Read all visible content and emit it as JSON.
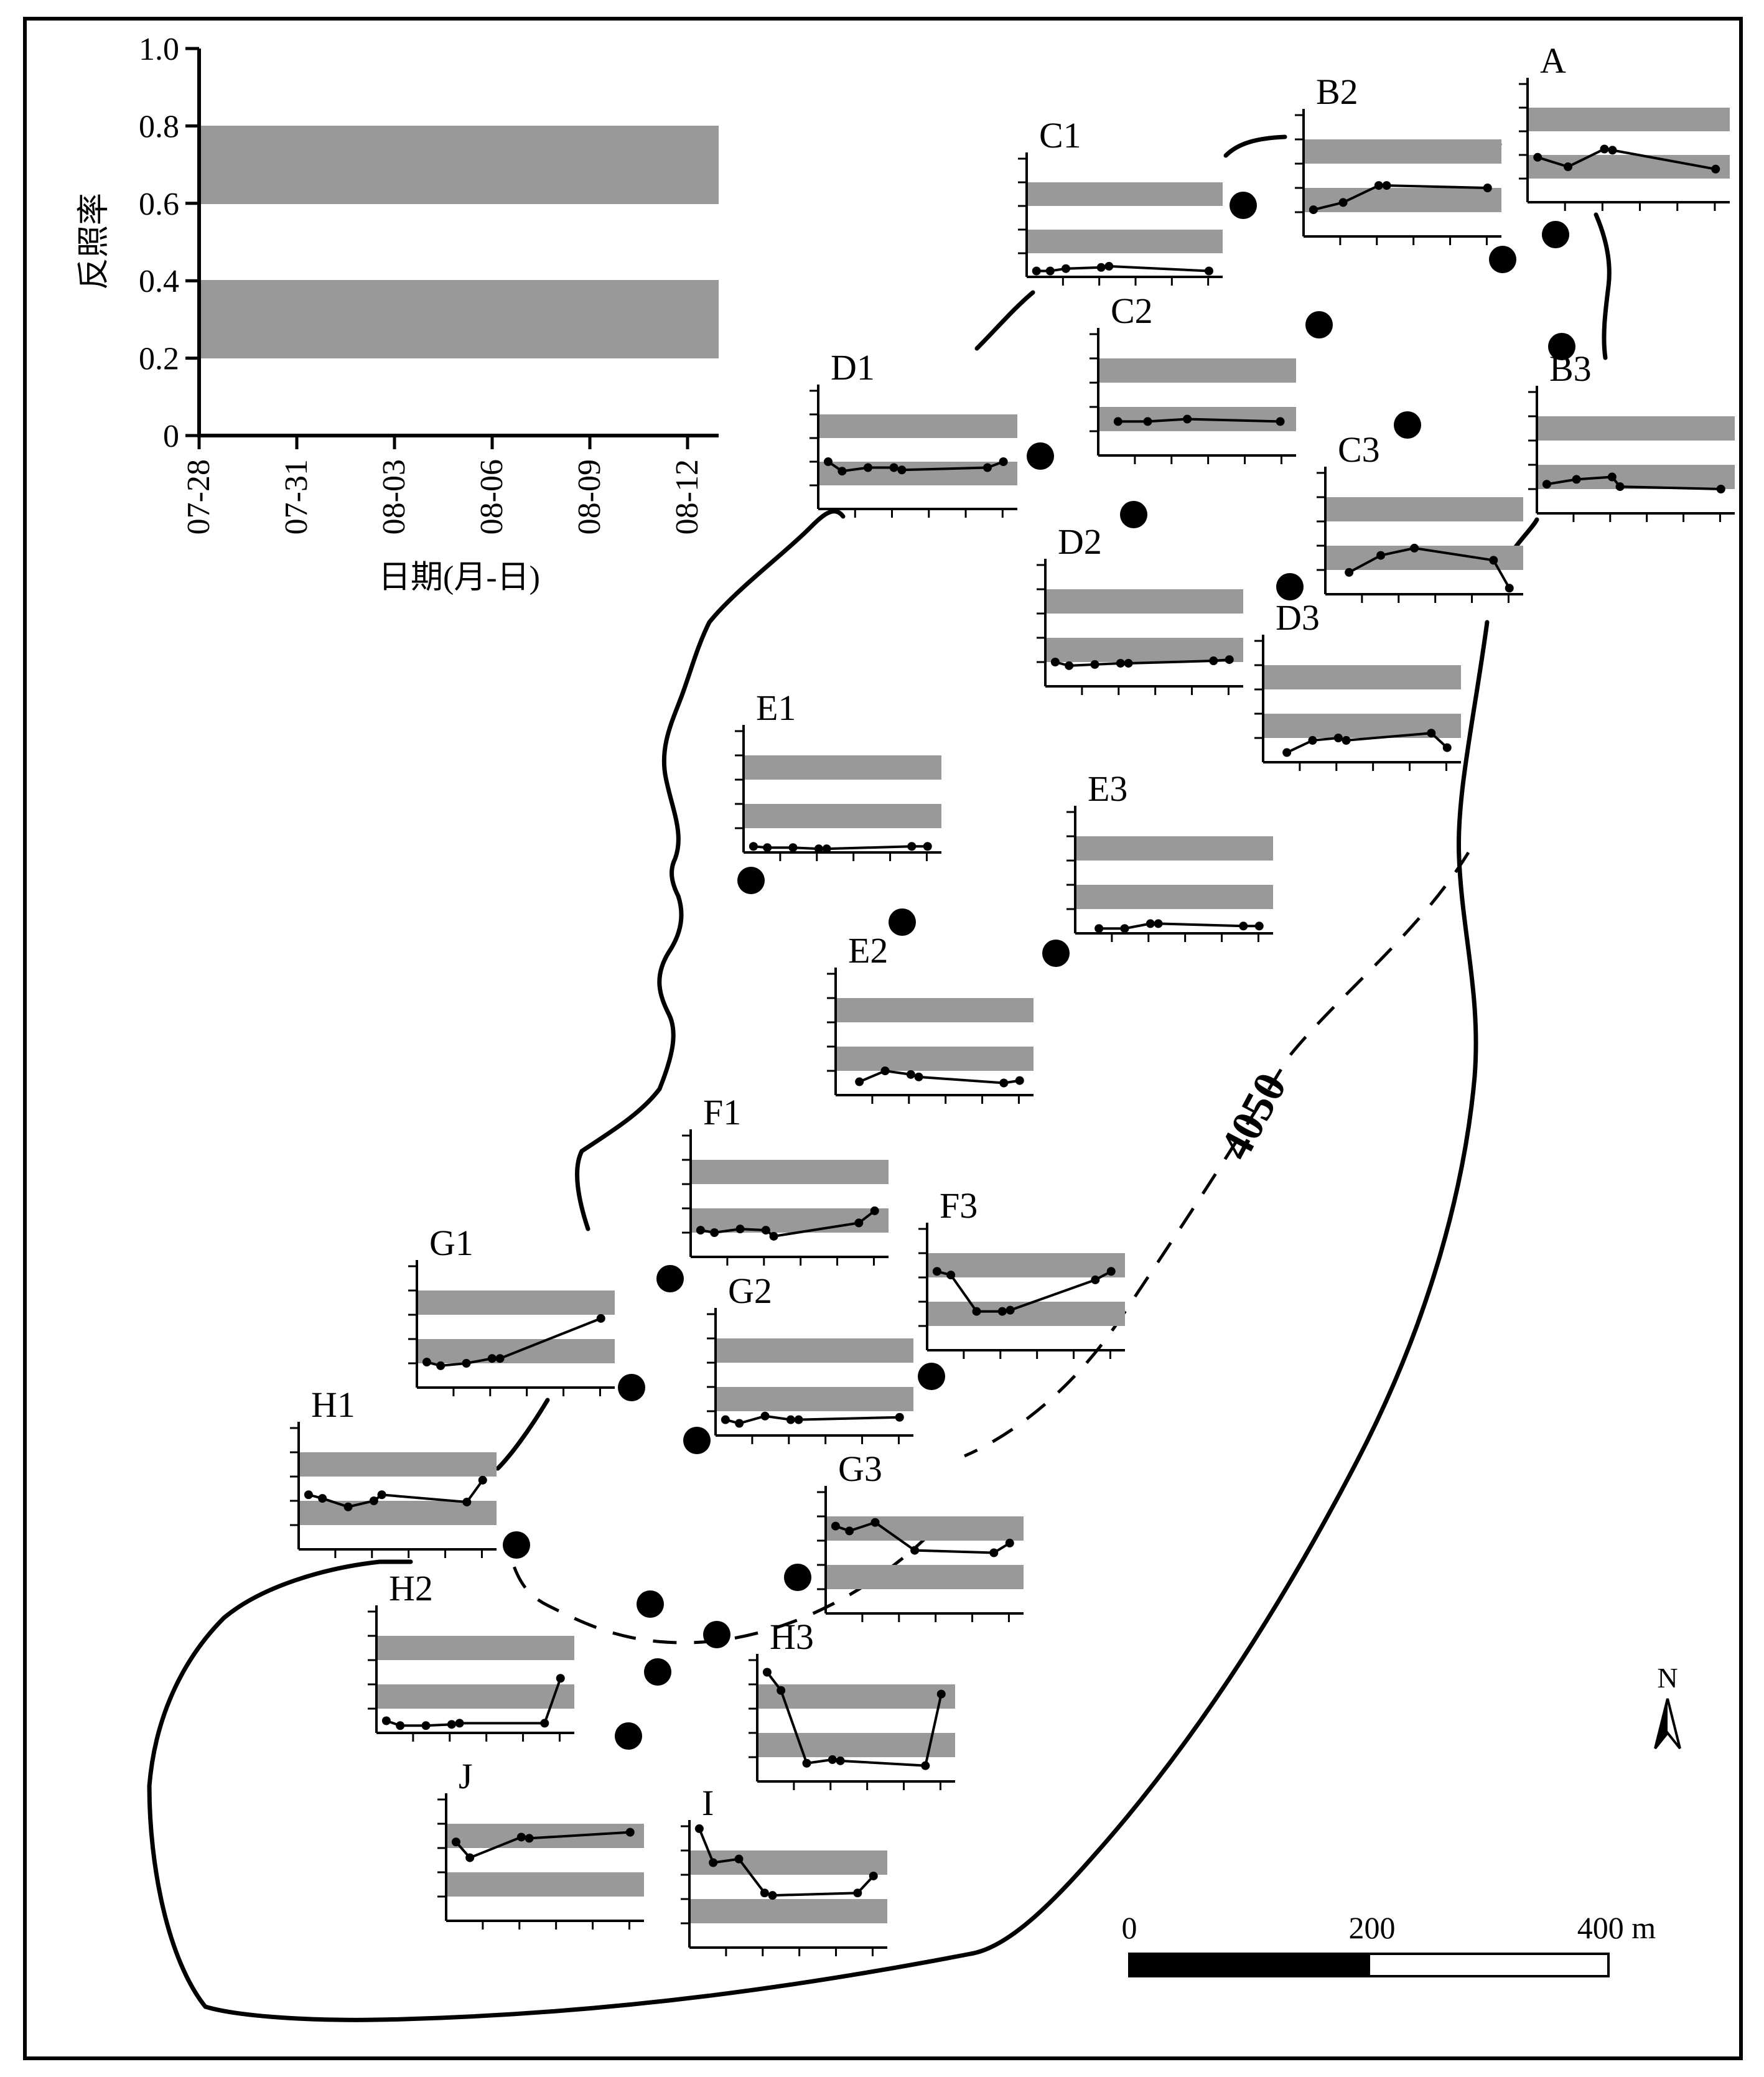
{
  "legend": {
    "ylabel": "反照率",
    "xlabel": "日期(月-日)",
    "ytick_labels": [
      "0",
      "0.2",
      "0.4",
      "0.6",
      "0.8",
      "1.0"
    ],
    "xtick_labels": [
      "07-28",
      "07-31",
      "08-03",
      "08-06",
      "08-09",
      "08-12"
    ]
  },
  "contour_label": "4050",
  "north_label": "N",
  "scale": {
    "labels": [
      "0",
      "200",
      "400 m"
    ]
  },
  "chart_data": [
    {
      "type": "line",
      "name": "A",
      "x": [
        0.05,
        0.2,
        0.38,
        0.42,
        0.93
      ],
      "values": [
        0.38,
        0.3,
        0.45,
        0.44,
        0.28
      ]
    },
    {
      "type": "line",
      "name": "B2",
      "x": [
        0.05,
        0.2,
        0.38,
        0.42,
        0.93
      ],
      "values": [
        0.22,
        0.28,
        0.42,
        0.42,
        0.4
      ]
    },
    {
      "type": "line",
      "name": "B3",
      "x": [
        0.05,
        0.2,
        0.38,
        0.42,
        0.93
      ],
      "values": [
        0.24,
        0.28,
        0.3,
        0.22,
        0.2
      ]
    },
    {
      "type": "line",
      "name": "C1",
      "x": [
        0.05,
        0.12,
        0.2,
        0.38,
        0.42,
        0.93
      ],
      "values": [
        0.05,
        0.05,
        0.07,
        0.08,
        0.09,
        0.05
      ]
    },
    {
      "type": "line",
      "name": "C2",
      "x": [
        0.1,
        0.25,
        0.45,
        0.92
      ],
      "values": [
        0.28,
        0.28,
        0.3,
        0.28
      ]
    },
    {
      "type": "line",
      "name": "C3",
      "x": [
        0.12,
        0.28,
        0.45,
        0.85,
        0.93
      ],
      "values": [
        0.18,
        0.32,
        0.38,
        0.28,
        0.05
      ]
    },
    {
      "type": "line",
      "name": "D1",
      "x": [
        0.05,
        0.12,
        0.25,
        0.38,
        0.42,
        0.85,
        0.93
      ],
      "values": [
        0.4,
        0.32,
        0.35,
        0.35,
        0.33,
        0.35,
        0.4
      ]
    },
    {
      "type": "line",
      "name": "D2",
      "x": [
        0.05,
        0.12,
        0.25,
        0.38,
        0.42,
        0.85,
        0.93
      ],
      "values": [
        0.2,
        0.17,
        0.18,
        0.19,
        0.19,
        0.21,
        0.22
      ]
    },
    {
      "type": "line",
      "name": "D3",
      "x": [
        0.12,
        0.25,
        0.38,
        0.42,
        0.85,
        0.93
      ],
      "values": [
        0.08,
        0.18,
        0.2,
        0.18,
        0.24,
        0.12
      ]
    },
    {
      "type": "line",
      "name": "E1",
      "x": [
        0.05,
        0.12,
        0.25,
        0.38,
        0.42,
        0.85,
        0.93
      ],
      "values": [
        0.05,
        0.04,
        0.04,
        0.03,
        0.03,
        0.05,
        0.05
      ]
    },
    {
      "type": "line",
      "name": "E3",
      "x": [
        0.12,
        0.25,
        0.38,
        0.42,
        0.85,
        0.93
      ],
      "values": [
        0.04,
        0.04,
        0.08,
        0.08,
        0.06,
        0.06
      ]
    },
    {
      "type": "line",
      "name": "E2",
      "x": [
        0.12,
        0.25,
        0.38,
        0.42,
        0.85,
        0.93
      ],
      "values": [
        0.11,
        0.2,
        0.17,
        0.15,
        0.1,
        0.12
      ]
    },
    {
      "type": "line",
      "name": "F1",
      "x": [
        0.05,
        0.12,
        0.25,
        0.38,
        0.42,
        0.85,
        0.93
      ],
      "values": [
        0.22,
        0.2,
        0.23,
        0.22,
        0.17,
        0.28,
        0.38
      ]
    },
    {
      "type": "line",
      "name": "F3",
      "x": [
        0.05,
        0.12,
        0.25,
        0.38,
        0.42,
        0.85,
        0.93
      ],
      "values": [
        0.65,
        0.62,
        0.32,
        0.32,
        0.33,
        0.58,
        0.65
      ]
    },
    {
      "type": "line",
      "name": "G1",
      "x": [
        0.05,
        0.12,
        0.25,
        0.38,
        0.42,
        0.93
      ],
      "values": [
        0.21,
        0.18,
        0.2,
        0.24,
        0.24,
        0.57
      ]
    },
    {
      "type": "line",
      "name": "G2",
      "x": [
        0.05,
        0.12,
        0.25,
        0.38,
        0.42,
        0.93
      ],
      "values": [
        0.13,
        0.1,
        0.16,
        0.13,
        0.13,
        0.15
      ]
    },
    {
      "type": "line",
      "name": "G3",
      "x": [
        0.05,
        0.12,
        0.25,
        0.45,
        0.85,
        0.93
      ],
      "values": [
        0.72,
        0.68,
        0.75,
        0.52,
        0.5,
        0.58
      ]
    },
    {
      "type": "line",
      "name": "H1",
      "x": [
        0.05,
        0.12,
        0.25,
        0.38,
        0.42,
        0.85,
        0.93
      ],
      "values": [
        0.45,
        0.42,
        0.35,
        0.4,
        0.45,
        0.39,
        0.57
      ]
    },
    {
      "type": "line",
      "name": "H2",
      "x": [
        0.05,
        0.12,
        0.25,
        0.38,
        0.42,
        0.85,
        0.93
      ],
      "values": [
        0.1,
        0.06,
        0.06,
        0.07,
        0.08,
        0.08,
        0.45
      ]
    },
    {
      "type": "line",
      "name": "H3",
      "x": [
        0.05,
        0.12,
        0.25,
        0.38,
        0.42,
        0.85,
        0.93
      ],
      "values": [
        0.9,
        0.75,
        0.15,
        0.18,
        0.17,
        0.13,
        0.72
      ]
    },
    {
      "type": "line",
      "name": "J",
      "x": [
        0.05,
        0.12,
        0.38,
        0.42,
        0.93
      ],
      "values": [
        0.65,
        0.52,
        0.69,
        0.68,
        0.73
      ]
    },
    {
      "type": "line",
      "name": "I",
      "x": [
        0.05,
        0.12,
        0.25,
        0.38,
        0.42,
        0.85,
        0.93
      ],
      "values": [
        0.98,
        0.7,
        0.73,
        0.45,
        0.43,
        0.45,
        0.59
      ]
    }
  ]
}
